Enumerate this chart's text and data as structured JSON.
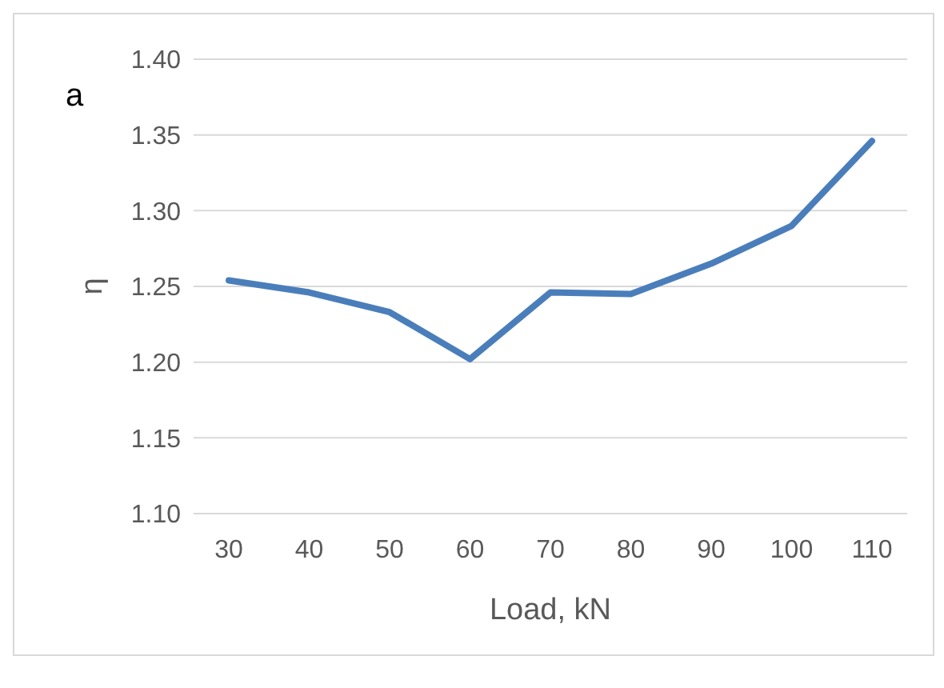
{
  "chart_data": {
    "type": "line",
    "ylabel": "η",
    "xlabel": "Load, kN",
    "annotations": [
      "a"
    ],
    "categories": [
      "30",
      "40",
      "50",
      "60",
      "70",
      "80",
      "90",
      "100",
      "110"
    ],
    "series": [
      {
        "color": "#4a7ebb",
        "values": [
          1.254,
          1.246,
          1.233,
          1.202,
          1.246,
          1.245,
          1.265,
          1.29,
          1.346
        ]
      }
    ],
    "ylim": [
      1.1,
      1.4
    ],
    "yticks": [
      {
        "value": 1.1,
        "label": "1.10"
      },
      {
        "value": 1.15,
        "label": "1.15"
      },
      {
        "value": 1.2,
        "label": "1.20"
      },
      {
        "value": 1.25,
        "label": "1.25"
      },
      {
        "value": 1.3,
        "label": "1.30"
      },
      {
        "value": 1.35,
        "label": "1.35"
      },
      {
        "value": 1.4,
        "label": "1.40"
      }
    ],
    "grid": "y",
    "marker": "none",
    "line_style": "solid"
  }
}
